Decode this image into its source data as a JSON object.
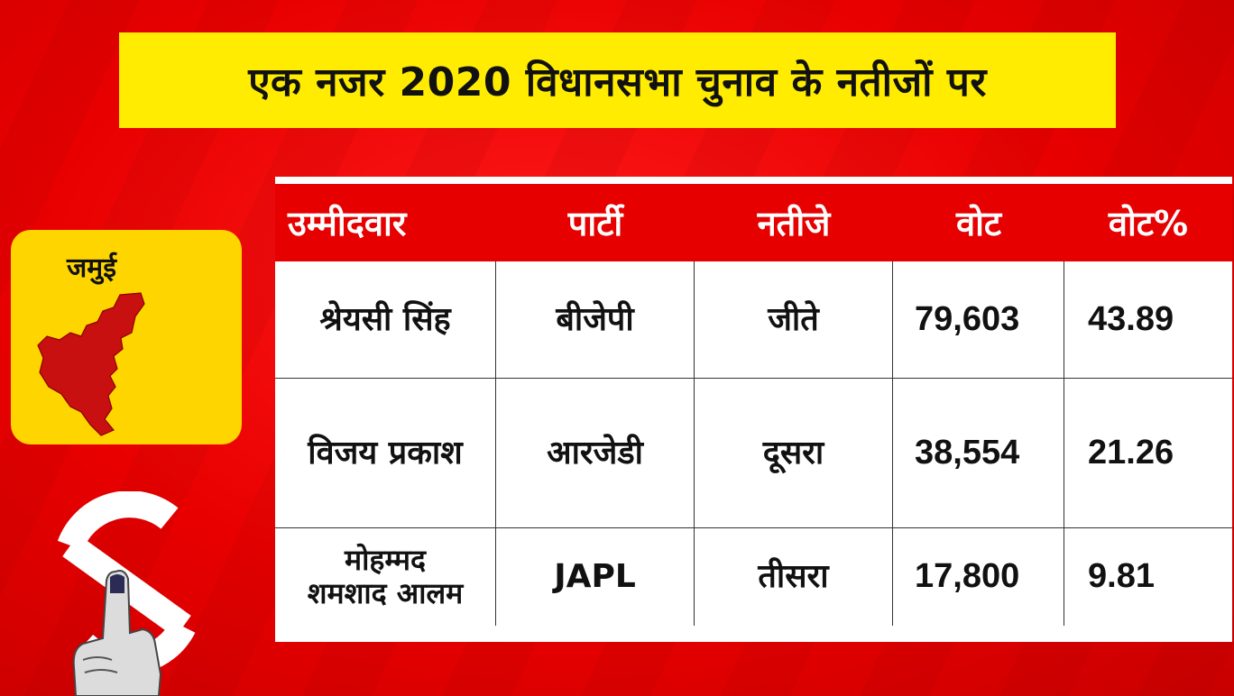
{
  "title": "एक नजर 2020 विधानसभा चुनाव के नतीजों पर",
  "district": "जमुई",
  "table": {
    "headers": [
      "उम्मीदवार",
      "पार्टी",
      "नतीजे",
      "वोट",
      "वोट%"
    ],
    "rows": [
      {
        "candidate": "श्रेयसी सिंह",
        "party": "बीजेपी",
        "result": "जीते",
        "votes": "79,603",
        "vote_pct": "43.89"
      },
      {
        "candidate": "विजय प्रकाश",
        "party": "आरजेडी",
        "result": "दूसरा",
        "votes": "38,554",
        "vote_pct": "21.26"
      },
      {
        "candidate": "मोहम्मद\nशमशाद आलम",
        "party": "JAPL",
        "result": "तीसरा",
        "votes": "17,800",
        "vote_pct": "9.81"
      }
    ]
  },
  "colors": {
    "background": "#e80000",
    "banner": "#ffec00",
    "card": "#ffd500",
    "header": "#e60000",
    "map": "#c81010"
  },
  "icons": [
    "district-map-icon",
    "election-logo-icon",
    "inked-finger-icon"
  ]
}
